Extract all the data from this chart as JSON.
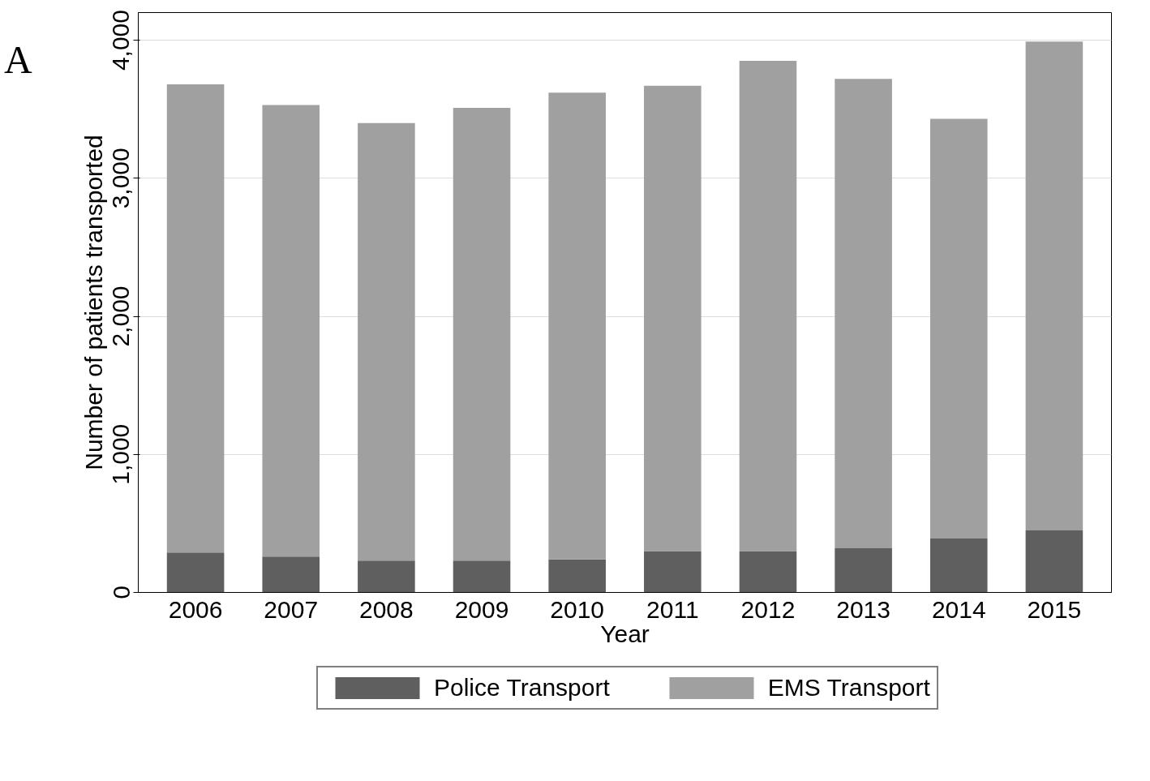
{
  "chart_data": {
    "type": "bar",
    "stacked": true,
    "xlabel": "Year",
    "ylabel": "Number of patients transported",
    "annotations": [
      "A"
    ],
    "categories": [
      "2006",
      "2007",
      "2008",
      "2009",
      "2010",
      "2011",
      "2012",
      "2013",
      "2014",
      "2015"
    ],
    "series": [
      {
        "name": "Police Transport",
        "color": "#5f5f5f",
        "values": [
          290,
          260,
          230,
          230,
          240,
          300,
          300,
          320,
          390,
          450
        ]
      },
      {
        "name": "EMS Transport",
        "color": "#a0a0a0",
        "values": [
          3390,
          3270,
          3170,
          3280,
          3380,
          3370,
          3550,
          3400,
          3040,
          3540
        ]
      }
    ],
    "ylim": [
      0,
      4200
    ],
    "yticks": [
      {
        "value": 0,
        "label": "0"
      },
      {
        "value": 1000,
        "label": "1,000"
      },
      {
        "value": 2000,
        "label": "2,000"
      },
      {
        "value": 3000,
        "label": "3,000"
      },
      {
        "value": 4000,
        "label": "4,000"
      }
    ],
    "grid": "y",
    "legend": "bottom"
  }
}
